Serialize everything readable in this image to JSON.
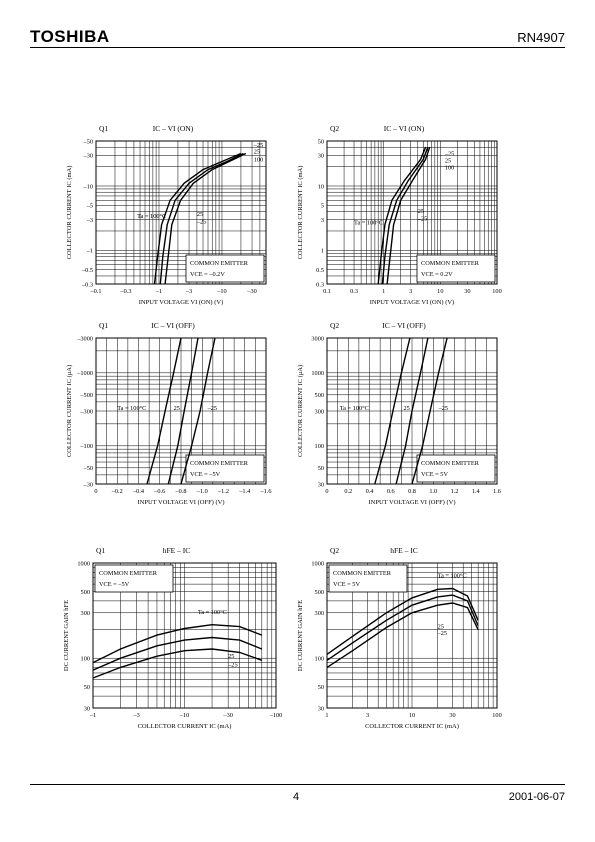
{
  "header": {
    "logo": "TOSHIBA",
    "part_number": "RN4907"
  },
  "footer": {
    "page_number": "4",
    "date": "2001-06-07"
  },
  "chart_data": [
    {
      "type": "line",
      "transistor": "Q1",
      "title": "IC – VI (ON)",
      "xlabel": "INPUT VOLTAGE VI (ON) (V)",
      "ylabel": "COLLECTOR CURRENT IC (mA)",
      "xscale": "log",
      "yscale": "log",
      "negate_ticks": true,
      "xlim": [
        0.1,
        50
      ],
      "ylim": [
        0.3,
        50
      ],
      "xticks": [
        {
          "v": 0.1,
          "l": "–0.1"
        },
        {
          "v": 0.3,
          "l": "–0.3"
        },
        {
          "v": 1,
          "l": "–1"
        },
        {
          "v": 3,
          "l": "–3"
        },
        {
          "v": 10,
          "l": "–10"
        },
        {
          "v": 30,
          "l": "–30"
        }
      ],
      "yticks": [
        {
          "v": 0.3,
          "l": "–0.3"
        },
        {
          "v": 0.5,
          "l": "–0.5"
        },
        {
          "v": 1,
          "l": "–1"
        },
        {
          "v": 3,
          "l": "–3"
        },
        {
          "v": 5,
          "l": "–5"
        },
        {
          "v": 10,
          "l": "–10"
        },
        {
          "v": 30,
          "l": "–30"
        },
        {
          "v": 50,
          "l": "–50"
        }
      ],
      "legend_box": [
        "COMMON EMITTER",
        "VCE = –0.2V"
      ],
      "series": [
        {
          "name": "Ta = 100°C",
          "x": [
            0.85,
            0.95,
            1.1,
            1.5,
            2.5,
            5,
            10,
            20
          ],
          "y": [
            0.3,
            0.8,
            2.5,
            6,
            11,
            18,
            24,
            32
          ]
        },
        {
          "name": "25",
          "x": [
            1.05,
            1.15,
            1.35,
            1.8,
            3,
            6,
            12,
            22
          ],
          "y": [
            0.3,
            0.8,
            2.5,
            6,
            11,
            18,
            24,
            32
          ]
        },
        {
          "name": "–25",
          "x": [
            1.25,
            1.4,
            1.6,
            2.2,
            3.5,
            7,
            13,
            24
          ],
          "y": [
            0.3,
            0.8,
            2.5,
            6,
            11,
            18,
            24,
            32
          ]
        }
      ],
      "labels_left": [
        {
          "text": "Ta = 100°C",
          "x": 0.45,
          "y": 3.2
        },
        {
          "text": "25",
          "x": 4.0,
          "y": 3.4
        },
        {
          "text": "–25",
          "x": 4.0,
          "y": 2.6
        }
      ],
      "labels_right": [
        {
          "text": "–25",
          "x": 32,
          "y": 40
        },
        {
          "text": "25",
          "x": 32,
          "y": 32
        },
        {
          "text": "100",
          "x": 32,
          "y": 24
        }
      ]
    },
    {
      "type": "line",
      "transistor": "Q2",
      "title": "IC – VI (ON)",
      "xlabel": "INPUT VOLTAGE VI (ON) (V)",
      "ylabel": "COLLECTOR CURRENT IC (mA)",
      "xscale": "log",
      "yscale": "log",
      "negate_ticks": false,
      "xlim": [
        0.1,
        100
      ],
      "ylim": [
        0.3,
        50
      ],
      "xticks": [
        {
          "v": 0.1,
          "l": "0.1"
        },
        {
          "v": 0.3,
          "l": "0.3"
        },
        {
          "v": 1,
          "l": "1"
        },
        {
          "v": 3,
          "l": "3"
        },
        {
          "v": 10,
          "l": "10"
        },
        {
          "v": 30,
          "l": "30"
        },
        {
          "v": 100,
          "l": "100"
        }
      ],
      "yticks": [
        {
          "v": 0.3,
          "l": "0.3"
        },
        {
          "v": 0.5,
          "l": "0.5"
        },
        {
          "v": 1,
          "l": "1"
        },
        {
          "v": 3,
          "l": "3"
        },
        {
          "v": 5,
          "l": "5"
        },
        {
          "v": 10,
          "l": "10"
        },
        {
          "v": 30,
          "l": "30"
        },
        {
          "v": 50,
          "l": "50"
        }
      ],
      "legend_box": [
        "COMMON EMITTER",
        "VCE = 0.2V"
      ],
      "series": [
        {
          "name": "Ta = 100°C",
          "x": [
            0.8,
            0.9,
            1.05,
            1.4,
            2.3,
            4.5,
            5.5
          ],
          "y": [
            0.3,
            0.8,
            2.5,
            6,
            12,
            26,
            40
          ]
        },
        {
          "name": "25",
          "x": [
            0.95,
            1.05,
            1.25,
            1.7,
            2.7,
            5,
            6
          ],
          "y": [
            0.3,
            0.8,
            2.5,
            6,
            12,
            26,
            40
          ]
        },
        {
          "name": "–25",
          "x": [
            1.15,
            1.3,
            1.5,
            2.0,
            3.2,
            5.5,
            6.5
          ],
          "y": [
            0.3,
            0.8,
            2.5,
            6,
            12,
            26,
            40
          ]
        }
      ],
      "labels_left": [
        {
          "text": "Ta = 100°C",
          "x": 0.3,
          "y": 2.5
        },
        {
          "text": "25",
          "x": 4.0,
          "y": 3.8
        },
        {
          "text": "–25",
          "x": 4.0,
          "y": 2.9
        }
      ],
      "labels_right": [
        {
          "text": "–25",
          "x": 12,
          "y": 30
        },
        {
          "text": "25",
          "x": 12,
          "y": 23
        },
        {
          "text": "100",
          "x": 12,
          "y": 18
        }
      ]
    },
    {
      "type": "line",
      "transistor": "Q1",
      "title": "IC – VI (OFF)",
      "xlabel": "INPUT VOLTAGE VI (OFF) (V)",
      "ylabel": "COLLECTOR CURRENT IC (μA)",
      "xscale": "linear",
      "yscale": "log",
      "negate_ticks": true,
      "xlim": [
        0,
        1.6
      ],
      "ylim": [
        30,
        3000
      ],
      "xticks": [
        {
          "v": 0,
          "l": "0"
        },
        {
          "v": 0.2,
          "l": "–0.2"
        },
        {
          "v": 0.4,
          "l": "–0.4"
        },
        {
          "v": 0.6,
          "l": "–0.6"
        },
        {
          "v": 0.8,
          "l": "–0.8"
        },
        {
          "v": 1.0,
          "l": "–1.0"
        },
        {
          "v": 1.2,
          "l": "–1.2"
        },
        {
          "v": 1.4,
          "l": "–1.4"
        },
        {
          "v": 1.6,
          "l": "–1.6"
        }
      ],
      "yticks": [
        {
          "v": 30,
          "l": "–30"
        },
        {
          "v": 50,
          "l": "–50"
        },
        {
          "v": 100,
          "l": "–100"
        },
        {
          "v": 300,
          "l": "–300"
        },
        {
          "v": 500,
          "l": "–500"
        },
        {
          "v": 1000,
          "l": "–1000"
        },
        {
          "v": 3000,
          "l": "–3000"
        }
      ],
      "legend_box": [
        "COMMON EMITTER",
        "VCE = –5V"
      ],
      "series": [
        {
          "name": "Ta = 100°C",
          "x": [
            0.48,
            0.58,
            0.65,
            0.73,
            0.8
          ],
          "y": [
            30,
            100,
            300,
            1000,
            3000
          ]
        },
        {
          "name": "25",
          "x": [
            0.68,
            0.77,
            0.83,
            0.9,
            0.96
          ],
          "y": [
            30,
            100,
            300,
            1000,
            3000
          ]
        },
        {
          "name": "–25",
          "x": [
            0.8,
            0.9,
            0.98,
            1.05,
            1.12
          ],
          "y": [
            30,
            100,
            300,
            1000,
            3000
          ]
        }
      ],
      "labels_left": [
        {
          "text": "Ta = 100°C",
          "x": 0.2,
          "y": 310
        },
        {
          "text": "25",
          "x": 0.73,
          "y": 310
        },
        {
          "text": "–25",
          "x": 1.05,
          "y": 310
        }
      ],
      "labels_right": []
    },
    {
      "type": "line",
      "transistor": "Q2",
      "title": "IC – VI (OFF)",
      "xlabel": "INPUT VOLTAGE VI (OFF) (V)",
      "ylabel": "COLLECTOR CURRENT IC (μA)",
      "xscale": "linear",
      "yscale": "log",
      "negate_ticks": false,
      "xlim": [
        0,
        1.6
      ],
      "ylim": [
        30,
        3000
      ],
      "xticks": [
        {
          "v": 0,
          "l": "0"
        },
        {
          "v": 0.2,
          "l": "0.2"
        },
        {
          "v": 0.4,
          "l": "0.4"
        },
        {
          "v": 0.6,
          "l": "0.6"
        },
        {
          "v": 0.8,
          "l": "0.8"
        },
        {
          "v": 1.0,
          "l": "1.0"
        },
        {
          "v": 1.2,
          "l": "1.2"
        },
        {
          "v": 1.4,
          "l": "1.4"
        },
        {
          "v": 1.6,
          "l": "1.6"
        }
      ],
      "yticks": [
        {
          "v": 30,
          "l": "30"
        },
        {
          "v": 50,
          "l": "50"
        },
        {
          "v": 100,
          "l": "100"
        },
        {
          "v": 300,
          "l": "300"
        },
        {
          "v": 500,
          "l": "500"
        },
        {
          "v": 1000,
          "l": "1000"
        },
        {
          "v": 3000,
          "l": "3000"
        }
      ],
      "legend_box": [
        "COMMON EMITTER",
        "VCE = 5V"
      ],
      "series": [
        {
          "name": "Ta = 100°C",
          "x": [
            0.45,
            0.55,
            0.62,
            0.7,
            0.78
          ],
          "y": [
            30,
            100,
            300,
            1000,
            3000
          ]
        },
        {
          "name": "25",
          "x": [
            0.65,
            0.74,
            0.8,
            0.88,
            0.95
          ],
          "y": [
            30,
            100,
            300,
            1000,
            3000
          ]
        },
        {
          "name": "–25",
          "x": [
            0.8,
            0.9,
            0.97,
            1.05,
            1.13
          ],
          "y": [
            30,
            100,
            300,
            1000,
            3000
          ]
        }
      ],
      "labels_left": [
        {
          "text": "Ta = 100°C",
          "x": 0.12,
          "y": 310
        },
        {
          "text": "25",
          "x": 0.72,
          "y": 310
        },
        {
          "text": "–25",
          "x": 1.05,
          "y": 310
        }
      ],
      "labels_right": []
    },
    {
      "type": "line",
      "transistor": "Q1",
      "title": "hFE – IC",
      "xlabel": "COLLECTOR CURRENT IC (mA)",
      "ylabel": "DC CURRENT GAIN hFE",
      "xscale": "log",
      "yscale": "log",
      "negate_ticks": true,
      "xlim": [
        1,
        100
      ],
      "ylim": [
        30,
        1000
      ],
      "xticks": [
        {
          "v": 1,
          "l": "–1"
        },
        {
          "v": 3,
          "l": "–3"
        },
        {
          "v": 10,
          "l": "–10"
        },
        {
          "v": 30,
          "l": "–30"
        },
        {
          "v": 100,
          "l": "–100"
        }
      ],
      "yticks": [
        {
          "v": 30,
          "l": "30"
        },
        {
          "v": 50,
          "l": "50"
        },
        {
          "v": 100,
          "l": "100"
        },
        {
          "v": 300,
          "l": "300"
        },
        {
          "v": 500,
          "l": "500"
        },
        {
          "v": 1000,
          "l": "1000"
        }
      ],
      "legend_box": [
        "COMMON EMITTER",
        "VCE = –5V"
      ],
      "series": [
        {
          "name": "Ta = 100°C",
          "x": [
            1,
            2,
            5,
            10,
            20,
            40,
            70
          ],
          "y": [
            90,
            125,
            175,
            205,
            225,
            215,
            175
          ]
        },
        {
          "name": "25",
          "x": [
            1,
            2,
            5,
            10,
            20,
            40,
            70
          ],
          "y": [
            75,
            100,
            135,
            155,
            165,
            155,
            125
          ]
        },
        {
          "name": "–25",
          "x": [
            1,
            2,
            5,
            10,
            20,
            40,
            70
          ],
          "y": [
            62,
            80,
            105,
            120,
            125,
            115,
            95
          ]
        }
      ],
      "labels_left": [],
      "labels_right": [
        {
          "text": "Ta = 100°C",
          "x": 14,
          "y": 290
        },
        {
          "text": "25",
          "x": 30,
          "y": 100
        },
        {
          "text": "–25",
          "x": 30,
          "y": 82
        }
      ]
    },
    {
      "type": "line",
      "transistor": "Q2",
      "title": "hFE – IC",
      "xlabel": "COLLECTOR CURRENT IC (mA)",
      "ylabel": "DC CURRENT GAIN hFE",
      "xscale": "log",
      "yscale": "log",
      "negate_ticks": false,
      "xlim": [
        1,
        100
      ],
      "ylim": [
        30,
        1000
      ],
      "xticks": [
        {
          "v": 1,
          "l": "1"
        },
        {
          "v": 3,
          "l": "3"
        },
        {
          "v": 10,
          "l": "10"
        },
        {
          "v": 30,
          "l": "30"
        },
        {
          "v": 100,
          "l": "100"
        }
      ],
      "yticks": [
        {
          "v": 30,
          "l": "30"
        },
        {
          "v": 50,
          "l": "50"
        },
        {
          "v": 100,
          "l": "100"
        },
        {
          "v": 300,
          "l": "300"
        },
        {
          "v": 500,
          "l": "500"
        },
        {
          "v": 1000,
          "l": "1000"
        }
      ],
      "legend_box": [
        "COMMON EMITTER",
        "VCE = 5V"
      ],
      "series": [
        {
          "name": "Ta = 100°C",
          "x": [
            1,
            2,
            5,
            10,
            20,
            30,
            45,
            60
          ],
          "y": [
            110,
            170,
            300,
            430,
            530,
            540,
            450,
            250
          ]
        },
        {
          "name": "25",
          "x": [
            1,
            2,
            5,
            10,
            20,
            30,
            45,
            60
          ],
          "y": [
            95,
            145,
            250,
            360,
            440,
            460,
            400,
            220
          ]
        },
        {
          "name": "–25",
          "x": [
            1,
            2,
            5,
            10,
            20,
            30,
            45,
            60
          ],
          "y": [
            80,
            120,
            210,
            300,
            360,
            380,
            340,
            200
          ]
        }
      ],
      "labels_left": [],
      "labels_right": [
        {
          "text": "Ta = 100°C",
          "x": 20,
          "y": 700
        },
        {
          "text": "25",
          "x": 20,
          "y": 205
        },
        {
          "text": "–25",
          "x": 20,
          "y": 175
        }
      ]
    }
  ]
}
